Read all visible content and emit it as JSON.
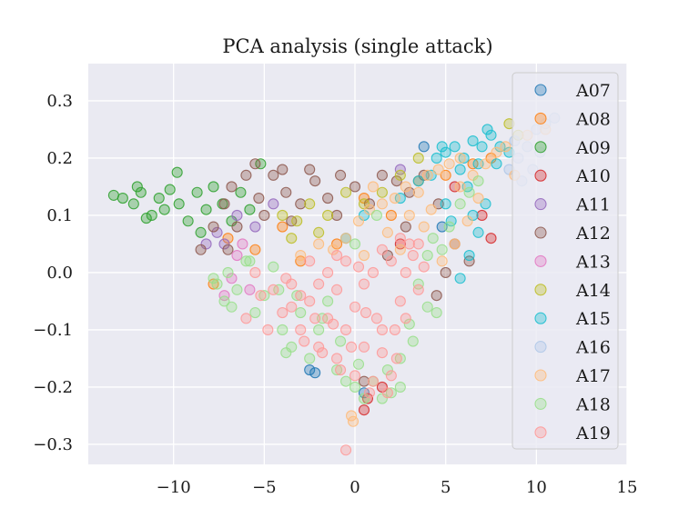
{
  "chart_data": {
    "type": "scatter",
    "title": "PCA analysis (single attack)",
    "xlabel": "",
    "ylabel": "",
    "xlim": [
      -14.7,
      15
    ],
    "ylim": [
      -0.335,
      0.365
    ],
    "xticks": [
      -10,
      -5,
      0,
      5,
      10,
      15
    ],
    "xtick_labels": [
      "−10",
      "−5",
      "0",
      "5",
      "10",
      "15"
    ],
    "yticks": [
      0.3,
      0.2,
      0.1,
      0.0,
      -0.1,
      -0.2,
      -0.3
    ],
    "ytick_labels": [
      "0.3",
      "0.2",
      "0.1",
      "0.0",
      "−0.1",
      "−0.2",
      "−0.3"
    ],
    "grid": true,
    "legend_position": "upper-right",
    "marker_alpha": 0.35,
    "series": [
      {
        "name": "A07",
        "color": "#1f77b4",
        "points": [
          [
            -2.5,
            -0.17
          ],
          [
            -2.2,
            -0.175
          ],
          [
            0.5,
            -0.21
          ],
          [
            3.8,
            0.22
          ],
          [
            4.8,
            0.08
          ]
        ]
      },
      {
        "name": "A08",
        "color": "#ff7f0e",
        "points": [
          [
            -7.8,
            -0.02
          ],
          [
            -7.0,
            0.06
          ],
          [
            -5.5,
            0.04
          ],
          [
            -3.0,
            0.02
          ],
          [
            -1.0,
            0.05
          ],
          [
            0.5,
            0.13
          ],
          [
            2.0,
            0.1
          ],
          [
            3.5,
            0.16
          ],
          [
            5.0,
            0.17
          ],
          [
            6.5,
            0.19
          ],
          [
            7.5,
            0.2
          ],
          [
            -4.0,
            0.08
          ]
        ]
      },
      {
        "name": "A09",
        "color": "#2ca02c",
        "points": [
          [
            -13.3,
            0.135
          ],
          [
            -12.8,
            0.13
          ],
          [
            -12.2,
            0.12
          ],
          [
            -11.8,
            0.14
          ],
          [
            -11.2,
            0.1
          ],
          [
            -10.8,
            0.13
          ],
          [
            -10.2,
            0.145
          ],
          [
            -9.7,
            0.12
          ],
          [
            -9.2,
            0.09
          ],
          [
            -8.7,
            0.14
          ],
          [
            -8.2,
            0.11
          ],
          [
            -7.8,
            0.15
          ],
          [
            -7.3,
            0.12
          ],
          [
            -6.8,
            0.09
          ],
          [
            -6.3,
            0.14
          ],
          [
            -5.8,
            0.11
          ],
          [
            -5.2,
            0.19
          ],
          [
            -12.0,
            0.15
          ],
          [
            -10.5,
            0.11
          ],
          [
            -9.8,
            0.175
          ],
          [
            -8.5,
            0.07
          ],
          [
            -11.5,
            0.095
          ]
        ]
      },
      {
        "name": "A10",
        "color": "#d62728",
        "points": [
          [
            0.5,
            -0.24
          ],
          [
            0.7,
            -0.22
          ],
          [
            1.5,
            -0.2
          ],
          [
            2.5,
            0.05
          ],
          [
            5.5,
            0.15
          ],
          [
            7.0,
            0.1
          ],
          [
            7.5,
            0.06
          ]
        ]
      },
      {
        "name": "A11",
        "color": "#9467bd",
        "points": [
          [
            -7.6,
            0.07
          ],
          [
            -7.2,
            0.05
          ],
          [
            -6.5,
            0.1
          ],
          [
            -5.5,
            0.08
          ],
          [
            -4.5,
            0.12
          ],
          [
            2.5,
            0.18
          ],
          [
            -8.2,
            0.05
          ]
        ]
      },
      {
        "name": "A12",
        "color": "#8c564b",
        "points": [
          [
            -8.5,
            0.04
          ],
          [
            -7.8,
            0.08
          ],
          [
            -7.2,
            0.12
          ],
          [
            -6.8,
            0.15
          ],
          [
            -6.0,
            0.17
          ],
          [
            -5.3,
            0.13
          ],
          [
            -4.5,
            0.17
          ],
          [
            -3.8,
            0.14
          ],
          [
            -3.0,
            0.12
          ],
          [
            -2.2,
            0.16
          ],
          [
            -1.5,
            0.13
          ],
          [
            -0.8,
            0.17
          ],
          [
            0.0,
            0.15
          ],
          [
            0.8,
            0.12
          ],
          [
            1.5,
            0.17
          ],
          [
            2.3,
            0.16
          ],
          [
            3.0,
            0.14
          ],
          [
            3.8,
            0.17
          ],
          [
            4.6,
            0.12
          ],
          [
            5.5,
            0.05
          ],
          [
            6.3,
            0.02
          ],
          [
            5.0,
            0.0
          ],
          [
            4.5,
            -0.04
          ],
          [
            -4.0,
            0.18
          ],
          [
            -5.5,
            0.19
          ],
          [
            -6.5,
            0.08
          ],
          [
            -2.5,
            0.18
          ],
          [
            -1.0,
            0.1
          ],
          [
            -3.5,
            0.09
          ],
          [
            -5.0,
            0.1
          ],
          [
            -7.0,
            0.04
          ],
          [
            0.5,
            -0.19
          ],
          [
            1.8,
            0.03
          ],
          [
            2.8,
            0.08
          ]
        ]
      },
      {
        "name": "A13",
        "color": "#e377c2",
        "points": [
          [
            -7.2,
            -0.04
          ],
          [
            -6.8,
            -0.01
          ],
          [
            -6.5,
            0.03
          ],
          [
            -5.8,
            -0.03
          ],
          [
            -6.2,
            0.05
          ]
        ]
      },
      {
        "name": "A14",
        "color": "#bcbd22",
        "points": [
          [
            -4.0,
            0.1
          ],
          [
            -3.2,
            0.09
          ],
          [
            -2.5,
            0.12
          ],
          [
            -1.5,
            0.1
          ],
          [
            -0.5,
            0.14
          ],
          [
            0.5,
            0.12
          ],
          [
            -3.5,
            0.06
          ],
          [
            -2.0,
            0.07
          ],
          [
            1.5,
            0.14
          ],
          [
            2.5,
            0.17
          ],
          [
            8.5,
            0.26
          ],
          [
            9.0,
            0.24
          ],
          [
            3.5,
            0.2
          ]
        ]
      },
      {
        "name": "A15",
        "color": "#17becf",
        "points": [
          [
            4.5,
            0.2
          ],
          [
            5.0,
            0.21
          ],
          [
            5.5,
            0.22
          ],
          [
            6.0,
            0.2
          ],
          [
            6.5,
            0.23
          ],
          [
            7.0,
            0.22
          ],
          [
            7.5,
            0.24
          ],
          [
            8.0,
            0.22
          ],
          [
            8.5,
            0.21
          ],
          [
            5.8,
            0.18
          ],
          [
            6.8,
            0.19
          ],
          [
            7.8,
            0.19
          ],
          [
            4.2,
            0.17
          ],
          [
            6.2,
            0.15
          ],
          [
            7.2,
            0.12
          ],
          [
            6.8,
            0.07
          ],
          [
            6.3,
            0.03
          ],
          [
            5.8,
            -0.01
          ],
          [
            5.3,
            0.09
          ],
          [
            6.5,
            0.1
          ],
          [
            5.0,
            0.12
          ],
          [
            4.8,
            0.22
          ],
          [
            3.5,
            0.16
          ],
          [
            2.5,
            0.13
          ],
          [
            0.5,
            0.1
          ],
          [
            -0.5,
            0.06
          ],
          [
            7.3,
            0.25
          ]
        ]
      },
      {
        "name": "A16",
        "color": "#aec7e8",
        "points": [
          [
            8.5,
            0.18
          ],
          [
            9.0,
            0.2
          ],
          [
            9.5,
            0.22
          ],
          [
            10.0,
            0.25
          ],
          [
            10.5,
            0.26
          ],
          [
            11.0,
            0.27
          ],
          [
            9.2,
            0.16
          ],
          [
            10.2,
            0.21
          ],
          [
            9.8,
            0.18
          ],
          [
            8.8,
            0.23
          ]
        ]
      },
      {
        "name": "A17",
        "color": "#ffbb78",
        "points": [
          [
            -1.2,
            0.04
          ],
          [
            -0.5,
            0.06
          ],
          [
            0.2,
            0.09
          ],
          [
            0.8,
            0.11
          ],
          [
            1.5,
            0.12
          ],
          [
            2.2,
            0.13
          ],
          [
            2.8,
            0.15
          ],
          [
            3.5,
            0.14
          ],
          [
            4.0,
            0.17
          ],
          [
            4.6,
            0.18
          ],
          [
            5.2,
            0.19
          ],
          [
            5.8,
            0.2
          ],
          [
            6.5,
            0.17
          ],
          [
            7.2,
            0.19
          ],
          [
            7.8,
            0.21
          ],
          [
            8.3,
            0.22
          ],
          [
            6.8,
            0.13
          ],
          [
            6.2,
            0.09
          ],
          [
            5.5,
            0.05
          ],
          [
            4.8,
            0.02
          ],
          [
            3.8,
            0.08
          ],
          [
            3.0,
            0.1
          ],
          [
            1.8,
            0.07
          ],
          [
            0.5,
            0.03
          ],
          [
            -0.2,
            -0.25
          ],
          [
            -0.1,
            -0.26
          ],
          [
            9.5,
            0.24
          ],
          [
            10.5,
            0.25
          ],
          [
            8.8,
            0.17
          ],
          [
            2.5,
            0.04
          ],
          [
            4.2,
            0.11
          ],
          [
            5.8,
            0.15
          ],
          [
            1.0,
            0.15
          ],
          [
            -2.0,
            0.05
          ],
          [
            -3.0,
            0.03
          ]
        ]
      },
      {
        "name": "A18",
        "color": "#98df8a",
        "points": [
          [
            -7.6,
            -0.02
          ],
          [
            -7.2,
            -0.05
          ],
          [
            -7.0,
            0.0
          ],
          [
            -6.5,
            -0.03
          ],
          [
            -6.0,
            0.02
          ],
          [
            -5.5,
            -0.07
          ],
          [
            -5.0,
            -0.04
          ],
          [
            -4.5,
            0.01
          ],
          [
            -4.0,
            -0.1
          ],
          [
            -3.5,
            -0.13
          ],
          [
            -3.0,
            -0.07
          ],
          [
            -2.5,
            -0.15
          ],
          [
            -2.0,
            -0.1
          ],
          [
            -1.5,
            -0.05
          ],
          [
            -1.0,
            -0.17
          ],
          [
            -0.5,
            -0.19
          ],
          [
            0.0,
            -0.2
          ],
          [
            0.5,
            -0.22
          ],
          [
            1.0,
            -0.19
          ],
          [
            1.5,
            -0.22
          ],
          [
            2.0,
            -0.21
          ],
          [
            2.5,
            -0.15
          ],
          [
            3.0,
            -0.09
          ],
          [
            3.5,
            -0.02
          ],
          [
            4.0,
            0.03
          ],
          [
            4.5,
            -0.07
          ],
          [
            4.8,
            0.04
          ],
          [
            5.2,
            0.08
          ],
          [
            5.8,
            0.12
          ],
          [
            6.3,
            0.14
          ],
          [
            6.8,
            0.16
          ],
          [
            4.0,
            -0.06
          ],
          [
            3.2,
            -0.12
          ],
          [
            2.5,
            -0.2
          ],
          [
            -5.8,
            0.02
          ],
          [
            -6.8,
            -0.06
          ],
          [
            -4.2,
            -0.03
          ],
          [
            -3.2,
            -0.04
          ],
          [
            -1.8,
            -0.08
          ],
          [
            -0.8,
            -0.12
          ],
          [
            0.2,
            -0.16
          ],
          [
            1.8,
            -0.17
          ],
          [
            -3.8,
            -0.14
          ],
          [
            4.3,
            0.06
          ],
          [
            -7.8,
            -0.01
          ],
          [
            1.2,
            0.1
          ],
          [
            0.0,
            0.05
          ]
        ]
      },
      {
        "name": "A19",
        "color": "#ff9896",
        "points": [
          [
            -4.5,
            -0.03
          ],
          [
            -4.0,
            -0.07
          ],
          [
            -3.5,
            -0.02
          ],
          [
            -3.0,
            -0.1
          ],
          [
            -2.5,
            -0.05
          ],
          [
            -2.0,
            -0.13
          ],
          [
            -1.5,
            -0.08
          ],
          [
            -1.0,
            -0.15
          ],
          [
            -0.5,
            -0.1
          ],
          [
            0.0,
            -0.18
          ],
          [
            0.5,
            -0.13
          ],
          [
            1.0,
            -0.19
          ],
          [
            1.5,
            -0.14
          ],
          [
            2.0,
            -0.18
          ],
          [
            2.2,
            -0.1
          ],
          [
            2.5,
            -0.05
          ],
          [
            2.8,
            0.0
          ],
          [
            3.2,
            0.03
          ],
          [
            3.5,
            -0.03
          ],
          [
            3.0,
            0.05
          ],
          [
            2.5,
            0.06
          ],
          [
            2.0,
            0.02
          ],
          [
            1.5,
            0.04
          ],
          [
            1.0,
            0.0
          ],
          [
            0.5,
            -0.02
          ],
          [
            0.0,
            -0.06
          ],
          [
            -0.5,
            0.02
          ],
          [
            -1.0,
            -0.03
          ],
          [
            -1.5,
            0.0
          ],
          [
            -2.0,
            -0.02
          ],
          [
            -2.5,
            0.02
          ],
          [
            -3.0,
            -0.04
          ],
          [
            -3.5,
            -0.06
          ],
          [
            -2.8,
            -0.12
          ],
          [
            -1.8,
            -0.14
          ],
          [
            -0.8,
            -0.17
          ],
          [
            0.8,
            -0.21
          ],
          [
            1.8,
            -0.21
          ],
          [
            2.3,
            -0.15
          ],
          [
            3.8,
            0.01
          ],
          [
            -6.0,
            -0.08
          ],
          [
            -5.2,
            -0.04
          ],
          [
            -5.5,
            0.0
          ],
          [
            -4.8,
            -0.1
          ],
          [
            -0.5,
            -0.31
          ],
          [
            1.2,
            -0.08
          ],
          [
            -0.2,
            -0.13
          ],
          [
            0.6,
            -0.07
          ],
          [
            1.5,
            -0.1
          ],
          [
            -1.2,
            -0.09
          ],
          [
            -2.2,
            -0.08
          ],
          [
            -3.8,
            -0.01
          ],
          [
            -1.0,
            0.03
          ],
          [
            0.2,
            0.01
          ],
          [
            2.8,
            -0.08
          ],
          [
            3.5,
            0.05
          ]
        ]
      }
    ]
  }
}
